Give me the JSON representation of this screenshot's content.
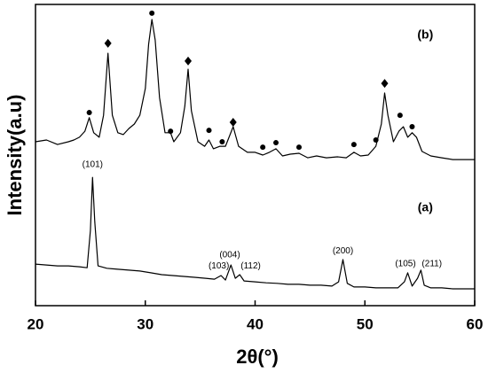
{
  "chart_data": {
    "type": "line",
    "xlabel": "2θ(°)",
    "ylabel": "Intensity(a.u)",
    "xlim": [
      20,
      60
    ],
    "xticks": [
      20,
      30,
      40,
      50,
      60
    ],
    "ylim": [
      0,
      100
    ],
    "series": [
      {
        "color": "#000000",
        "x": [
          20,
          21,
          22,
          23,
          23.5,
          24,
          24.5,
          24.9,
          25.3,
          25.8,
          26.2,
          26.6,
          27,
          27.5,
          28,
          28.5,
          29,
          29.5,
          30,
          30.3,
          30.6,
          30.9,
          31.3,
          31.8,
          32.3,
          32.6,
          33.2,
          33.6,
          33.9,
          34.2,
          34.8,
          35.4,
          35.8,
          36.2,
          36.8,
          37.3,
          38,
          38.5,
          39.3,
          40,
          40.7,
          41.3,
          41.9,
          42.5,
          43.2,
          44,
          44.8,
          45.6,
          46.5,
          47.5,
          48.3,
          49,
          49.6,
          50.3,
          51,
          51.5,
          51.8,
          52.1,
          52.6,
          53.1,
          53.5,
          53.9,
          54.3,
          54.7,
          55.2,
          56,
          57,
          58,
          59,
          60
        ],
        "values": [
          54.4,
          55.0,
          53.5,
          54.4,
          55.0,
          55.9,
          57.9,
          62.4,
          57.4,
          55.9,
          63.2,
          83.8,
          63.2,
          57.4,
          56.8,
          58.8,
          60.3,
          63.2,
          72.1,
          86.8,
          95.0,
          88.2,
          69.1,
          57.4,
          57.4,
          54.4,
          57.4,
          66.2,
          78.5,
          64.7,
          54.4,
          52.9,
          55.0,
          52.1,
          52.9,
          52.9,
          59.4,
          52.9,
          50.9,
          50.9,
          50.0,
          50.9,
          52.1,
          49.7,
          50.3,
          50.6,
          49.1,
          49.7,
          49.1,
          49.4,
          49.1,
          50.9,
          49.7,
          50.0,
          52.9,
          60.3,
          70.6,
          63.2,
          54.4,
          57.9,
          59.4,
          55.9,
          57.4,
          55.9,
          51.2,
          49.7,
          49.1,
          48.5,
          48.5,
          48.5
        ]
      },
      {
        "color": "#000000",
        "x": [
          20,
          21,
          22,
          23,
          24,
          24.7,
          25,
          25.2,
          25.4,
          25.7,
          26.5,
          27.5,
          28.5,
          29.5,
          30.5,
          31.5,
          32.5,
          33.5,
          34.5,
          35.5,
          36.3,
          36.9,
          37.3,
          37.8,
          38.2,
          38.6,
          39,
          40,
          41,
          42,
          43,
          44,
          45,
          46,
          47,
          47.6,
          48,
          48.4,
          49,
          50,
          51,
          52,
          53,
          53.6,
          53.9,
          54.3,
          54.8,
          55.1,
          55.4,
          56,
          57,
          58,
          59,
          60
        ],
        "values": [
          13.8,
          13.5,
          13.2,
          13.2,
          12.9,
          12.6,
          25.0,
          42.6,
          27.9,
          13.2,
          12.4,
          12.1,
          11.8,
          11.5,
          10.9,
          10.3,
          10.0,
          9.7,
          9.4,
          9.1,
          8.8,
          10.0,
          8.5,
          13.5,
          9.1,
          10.3,
          8.2,
          7.9,
          7.6,
          7.4,
          7.1,
          7.1,
          6.8,
          6.8,
          6.5,
          7.9,
          15.3,
          7.4,
          6.2,
          6.2,
          5.9,
          5.9,
          5.9,
          7.9,
          10.9,
          6.5,
          9.1,
          11.8,
          6.8,
          5.9,
          5.9,
          5.6,
          5.6,
          5.6
        ]
      }
    ],
    "markers": [
      {
        "x": 24.9,
        "y": 64.1,
        "shape": "circle"
      },
      {
        "x": 26.6,
        "y": 87.1,
        "shape": "diamond"
      },
      {
        "x": 30.6,
        "y": 97.1,
        "shape": "circle"
      },
      {
        "x": 32.3,
        "y": 57.9,
        "shape": "circle"
      },
      {
        "x": 33.9,
        "y": 81.2,
        "shape": "diamond"
      },
      {
        "x": 35.8,
        "y": 58.2,
        "shape": "circle"
      },
      {
        "x": 37,
        "y": 54.4,
        "shape": "circle"
      },
      {
        "x": 38,
        "y": 60.9,
        "shape": "diamond"
      },
      {
        "x": 40.7,
        "y": 52.6,
        "shape": "circle"
      },
      {
        "x": 41.9,
        "y": 54.1,
        "shape": "circle"
      },
      {
        "x": 44,
        "y": 52.6,
        "shape": "circle"
      },
      {
        "x": 49,
        "y": 53.5,
        "shape": "circle"
      },
      {
        "x": 51,
        "y": 55.0,
        "shape": "circle"
      },
      {
        "x": 51.8,
        "y": 73.8,
        "shape": "diamond"
      },
      {
        "x": 53.2,
        "y": 63.2,
        "shape": "circle"
      },
      {
        "x": 54.3,
        "y": 59.4,
        "shape": "circle"
      }
    ],
    "annotations": [
      {
        "text": "(b)",
        "x": 55.5,
        "y": 89.7,
        "size": "large"
      },
      {
        "text": "(a)",
        "x": 55.5,
        "y": 32.4,
        "size": "large"
      },
      {
        "text": "(101)",
        "x": 25.2,
        "y": 46.8
      },
      {
        "text": "(103)",
        "x": 36.7,
        "y": 13.2
      },
      {
        "text": "(004)",
        "x": 37.7,
        "y": 16.8
      },
      {
        "text": "(112)",
        "x": 39.6,
        "y": 13.2
      },
      {
        "text": "(200)",
        "x": 48.0,
        "y": 18.2
      },
      {
        "text": "(105)",
        "x": 53.7,
        "y": 13.8
      },
      {
        "text": "(211)",
        "x": 56.1,
        "y": 13.8
      }
    ]
  }
}
